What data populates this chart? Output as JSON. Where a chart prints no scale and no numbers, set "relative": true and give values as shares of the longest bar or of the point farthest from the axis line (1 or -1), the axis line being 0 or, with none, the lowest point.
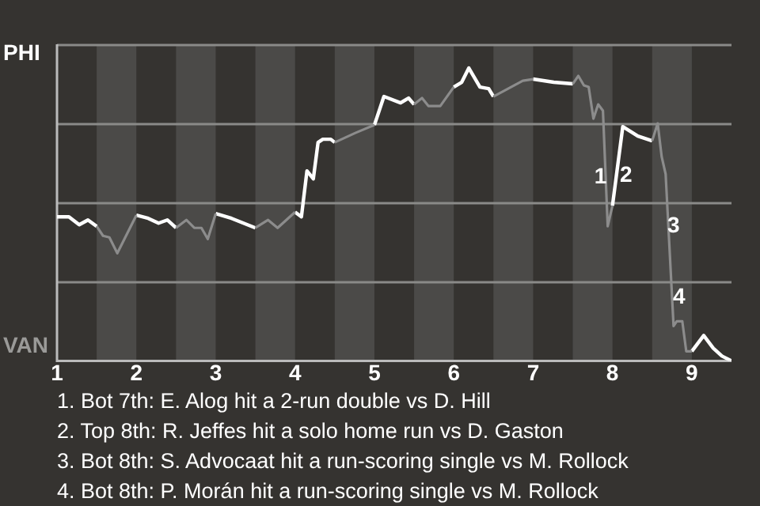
{
  "chart_data": {
    "type": "line",
    "relative": true,
    "grid": "y",
    "legend": false,
    "marker": "none",
    "xlim": [
      1,
      9.5
    ],
    "xticks": [
      1,
      2,
      3,
      4,
      5,
      6,
      7,
      8,
      9
    ],
    "series": [
      {
        "color": "#ffffff",
        "x": [
          1.0,
          1.15,
          1.28,
          1.39,
          1.5,
          1.75,
          2.0,
          2.15,
          2.28,
          2.39,
          2.5,
          2.75,
          3.0,
          3.2,
          3.5,
          3.75,
          4.0,
          4.08,
          4.15,
          4.23,
          4.29,
          4.35,
          4.45,
          4.5,
          4.75,
          5.0,
          5.12,
          5.33,
          5.43,
          5.5,
          5.75,
          6.0,
          6.1,
          6.19,
          6.33,
          6.44,
          6.5,
          6.75,
          7.0,
          7.26,
          7.5,
          7.75,
          8.0,
          8.13,
          8.32,
          8.5,
          8.75,
          9.0,
          9.15,
          9.27,
          9.38,
          9.5
        ],
        "values": [
          -0.09,
          -0.09,
          -0.14,
          -0.11,
          -0.15,
          null,
          -0.08,
          -0.1,
          -0.13,
          -0.11,
          -0.16,
          null,
          -0.07,
          -0.1,
          -0.16,
          null,
          -0.06,
          -0.09,
          0.2,
          0.15,
          0.38,
          0.4,
          0.4,
          0.38,
          null,
          0.49,
          0.67,
          0.63,
          0.66,
          0.62,
          null,
          0.73,
          0.76,
          0.85,
          0.73,
          0.72,
          0.67,
          null,
          0.78,
          0.76,
          0.75,
          null,
          -0.02,
          0.48,
          0.42,
          0.39,
          null,
          -0.94,
          -0.84,
          -0.92,
          -0.97,
          -1.0
        ]
      },
      {
        "color": "#8c8c8c",
        "x": [
          1.5,
          1.58,
          1.66,
          1.76,
          1.85,
          2.0,
          2.25,
          2.5,
          2.63,
          2.73,
          2.82,
          2.9,
          3.0,
          3.25,
          3.5,
          3.66,
          3.78,
          4.0,
          4.25,
          4.5,
          4.76,
          5.0,
          5.25,
          5.5,
          5.6,
          5.68,
          5.83,
          6.0,
          6.25,
          6.5,
          6.87,
          7.0,
          7.25,
          7.5,
          7.57,
          7.64,
          7.7,
          7.76,
          7.82,
          7.88,
          7.94,
          8.0,
          8.25,
          8.5,
          8.57,
          8.62,
          8.67,
          8.77,
          8.81,
          8.88,
          8.93,
          9.0
        ],
        "values": [
          -0.15,
          -0.21,
          -0.22,
          -0.32,
          -0.23,
          -0.08,
          null,
          -0.16,
          -0.11,
          -0.16,
          -0.16,
          -0.23,
          -0.07,
          null,
          -0.16,
          -0.11,
          -0.16,
          -0.06,
          null,
          0.38,
          0.44,
          0.49,
          null,
          0.62,
          0.66,
          0.61,
          0.61,
          0.73,
          null,
          0.67,
          0.77,
          0.78,
          null,
          0.75,
          0.8,
          0.74,
          0.73,
          0.53,
          0.62,
          0.58,
          -0.15,
          -0.02,
          null,
          0.39,
          0.5,
          0.29,
          0.18,
          -0.78,
          -0.75,
          -0.75,
          -0.94,
          -0.94
        ]
      }
    ],
    "bands": [
      {
        "axis": "x",
        "from": 1.5,
        "to": 2,
        "color": "#4b4a48"
      },
      {
        "axis": "x",
        "from": 2.5,
        "to": 3,
        "color": "#4b4a48"
      },
      {
        "axis": "x",
        "from": 3.5,
        "to": 4,
        "color": "#4b4a48"
      },
      {
        "axis": "x",
        "from": 4.5,
        "to": 5,
        "color": "#4b4a48"
      },
      {
        "axis": "x",
        "from": 5.5,
        "to": 6,
        "color": "#4b4a48"
      },
      {
        "axis": "x",
        "from": 6.5,
        "to": 7,
        "color": "#4b4a48"
      },
      {
        "axis": "x",
        "from": 7.5,
        "to": 8,
        "color": "#4b4a48"
      },
      {
        "axis": "x",
        "from": 8.5,
        "to": 9,
        "color": "#4b4a48"
      }
    ],
    "annotations": [
      "PHI",
      "VAN",
      {
        "text": "1",
        "x": 7.85,
        "y": 0.16
      },
      {
        "text": "2",
        "x": 8.17,
        "y": 0.17
      },
      {
        "text": "3",
        "x": 8.77,
        "y": -0.15
      },
      {
        "text": "4",
        "x": 8.84,
        "y": -0.6
      },
      "1. Bot 7th: E. Alog hit a 2-run double vs D. Hill",
      "2. Top 8th: R. Jeffes hit a solo home run vs D. Gaston",
      "3. Bot 8th: S. Advocaat hit a run-scoring single vs M. Rollock",
      "4. Bot 8th: P. Morán hit a run-scoring single vs M. Rollock"
    ]
  }
}
